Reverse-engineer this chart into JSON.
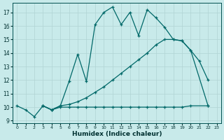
{
  "bg_color": "#c8eaea",
  "grid_color": "#b0d4d4",
  "line_color": "#006868",
  "xlabel": "Humidex (Indice chaleur)",
  "xlim": [
    -0.5,
    23.5
  ],
  "ylim": [
    8.8,
    17.7
  ],
  "yticks": [
    9,
    10,
    11,
    12,
    13,
    14,
    15,
    16,
    17
  ],
  "xticks": [
    0,
    1,
    2,
    3,
    4,
    5,
    6,
    7,
    8,
    9,
    10,
    11,
    12,
    13,
    14,
    15,
    16,
    17,
    18,
    19,
    20,
    21,
    22,
    23
  ],
  "line1_x": [
    0,
    1,
    2,
    3,
    4,
    5,
    6,
    7,
    8,
    9,
    10,
    11,
    12,
    13,
    14,
    15,
    16,
    17,
    18,
    19,
    20,
    21,
    22
  ],
  "line1_y": [
    10.1,
    9.8,
    9.3,
    10.1,
    9.8,
    10.1,
    11.9,
    13.9,
    11.9,
    16.1,
    17.0,
    17.4,
    16.1,
    17.0,
    15.3,
    17.2,
    16.6,
    15.9,
    15.0,
    14.9,
    14.2,
    13.4,
    12.0
  ],
  "line2_x": [
    3,
    4,
    5,
    6,
    7,
    8,
    9,
    10,
    11,
    12,
    13,
    14,
    15,
    16,
    17,
    18,
    19,
    20,
    22
  ],
  "line2_y": [
    10.1,
    9.8,
    10.1,
    10.2,
    10.4,
    10.7,
    11.1,
    11.5,
    12.0,
    12.5,
    13.0,
    13.5,
    14.0,
    14.6,
    15.0,
    15.0,
    14.9,
    14.2,
    10.1
  ],
  "line3_x": [
    3,
    4,
    5,
    6,
    7,
    8,
    9,
    10,
    11,
    12,
    13,
    14,
    15,
    16,
    17,
    18,
    19,
    20,
    22
  ],
  "line3_y": [
    10.1,
    9.8,
    10.0,
    10.0,
    10.0,
    10.0,
    10.0,
    10.0,
    10.0,
    10.0,
    10.0,
    10.0,
    10.0,
    10.0,
    10.0,
    10.0,
    10.0,
    10.1,
    10.1
  ]
}
